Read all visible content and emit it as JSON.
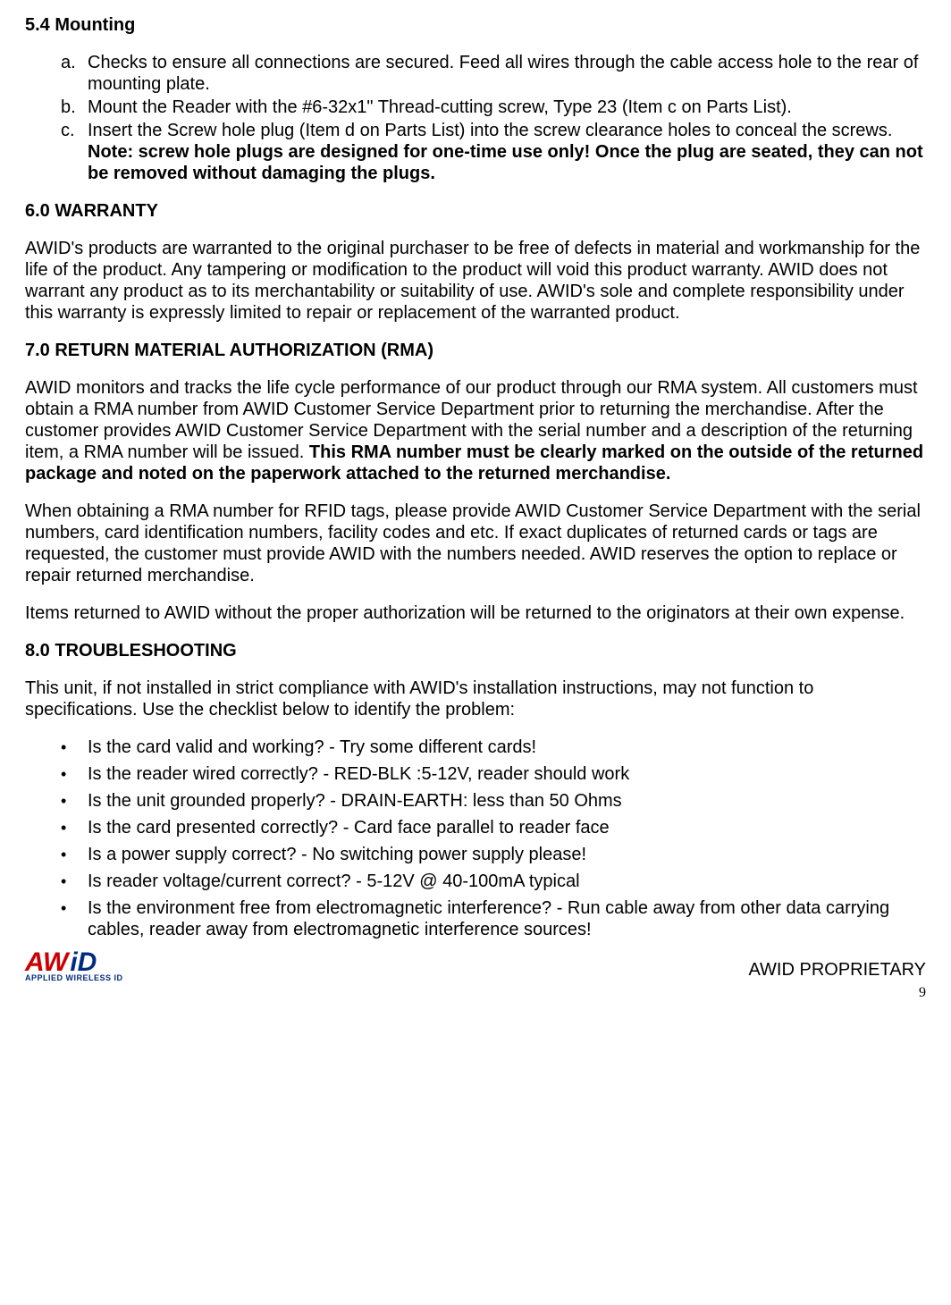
{
  "subhead54": "5.4 Mounting",
  "mounting": {
    "a": {
      "marker": "a.",
      "text": "Checks to ensure all connections are secured.  Feed all wires through the cable access hole to the rear of mounting plate."
    },
    "b": {
      "marker": "b.",
      "text": "Mount the Reader with the #6-32x1\" Thread-cutting screw, Type 23 (Item c on Parts List)."
    },
    "c": {
      "marker": "c.",
      "pre": "Insert the Screw hole plug (Item d on Parts List) into the screw clearance holes to conceal the screws. ",
      "bold": "Note: screw hole plugs are designed for one-time use only! Once the plug are seated, they can not be removed without damaging the plugs."
    }
  },
  "head60": "6.0 WARRANTY",
  "warranty_text": "AWID's products are warranted to the original purchaser to be free of defects in material and workmanship for the life of the product.  Any tampering or modification to the product will void this product warranty.  AWID does not warrant any product as to its merchantability or suitability of use.  AWID's sole and complete responsibility under this warranty is expressly limited to repair or replacement of the warranted product.",
  "head70": "7.0 RETURN MATERIAL AUTHORIZATION (RMA)",
  "rma_p1_pre": "AWID monitors and tracks the life cycle performance of our product through our RMA system.  All customers must obtain a RMA number from AWID Customer Service Department prior to returning the merchandise.  After the customer provides AWID Customer Service Department with the serial number and a description of the returning item, a RMA number will be issued.  ",
  "rma_p1_bold": "This RMA number must be clearly marked on the outside of the returned package and noted on the paperwork attached to the returned merchandise.",
  "rma_p2": "When obtaining a RMA number for RFID tags, please provide AWID Customer Service Department with the serial numbers, card identification numbers, facility codes and etc.  If exact duplicates of returned cards or tags are requested, the customer must provide AWID with the numbers needed.  AWID reserves the option to replace or repair returned merchandise.",
  "rma_p3": "Items returned to AWID without the proper authorization will be returned to the originators at their own expense.",
  "head80": "8.0 TROUBLESHOOTING",
  "trouble_intro": "This unit, if not installed in strict compliance with AWID's installation instructions, may not function to specifications.  Use the checklist below to identify the problem:",
  "checklist": {
    "i1": "Is the card valid and working?      - Try some different cards!",
    "i2": "Is the reader wired correctly?       - RED-BLK :5-12V, reader should work",
    "i3": "Is the unit grounded properly?      - DRAIN-EARTH: less than 50 Ohms",
    "i4": "Is the card presented correctly?    - Card face parallel to reader face",
    "i5": "Is a power supply correct?           - No switching power supply please!",
    "i6": "Is reader voltage/current correct? - 5-12V @ 40-100mA typical",
    "i7": "Is the environment free from electromagnetic interference?    - Run cable away from other data carrying cables, reader away from electromagnetic interference sources!"
  },
  "bullet": "•",
  "logo": {
    "aw": "AW",
    "id": "iD",
    "sub": "APPLIED WIRELESS ID"
  },
  "proprietary": "AWID PROPRIETARY",
  "pagenum": "9"
}
